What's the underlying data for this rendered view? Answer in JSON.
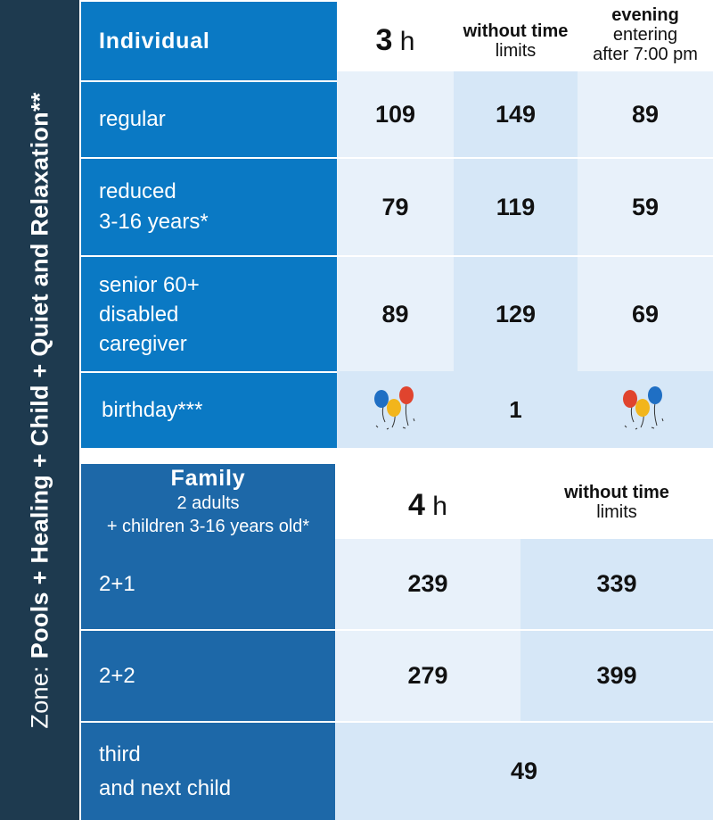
{
  "zone": {
    "prefix": "Zone: ",
    "name": "Pools + Healing + Child + Quiet and Relaxation**"
  },
  "individual": {
    "title": "Individual",
    "columns": [
      {
        "num": "3",
        "unit": " h"
      },
      {
        "bold": "without time",
        "normal": "limits"
      },
      {
        "bold": "evening",
        "line2": "entering",
        "line3": "after 7:00 pm"
      }
    ],
    "rows": [
      {
        "label_lines": [
          "regular"
        ],
        "values": [
          "109",
          "149",
          "89"
        ]
      },
      {
        "label_lines": [
          "reduced",
          "3-16 years*"
        ],
        "values": [
          "79",
          "119",
          "59"
        ]
      },
      {
        "label_lines": [
          "senior 60+",
          "disabled",
          "caregiver"
        ],
        "values": [
          "89",
          "129",
          "69"
        ]
      }
    ],
    "birthday": {
      "label": "birthday***",
      "value": "1",
      "icon": "balloons-icon"
    }
  },
  "family": {
    "title": "Family",
    "subtitle1": "2 adults",
    "subtitle2": "+ children 3-16 years old*",
    "columns": [
      {
        "num": "4",
        "unit": " h"
      },
      {
        "bold": "without time",
        "normal": "limits"
      }
    ],
    "rows": [
      {
        "label": "2+1",
        "values": [
          "239",
          "339"
        ]
      },
      {
        "label": "2+2",
        "values": [
          "279",
          "399"
        ]
      }
    ],
    "extra": {
      "label_lines": [
        "third",
        "and next child"
      ],
      "value": "49"
    }
  },
  "colors": {
    "zone_bar": "#1e3a4f",
    "individual_blue": "#0a79c4",
    "family_blue": "#1d68a8",
    "cell_light": "#e8f1fa",
    "cell_medium": "#d6e7f7"
  }
}
